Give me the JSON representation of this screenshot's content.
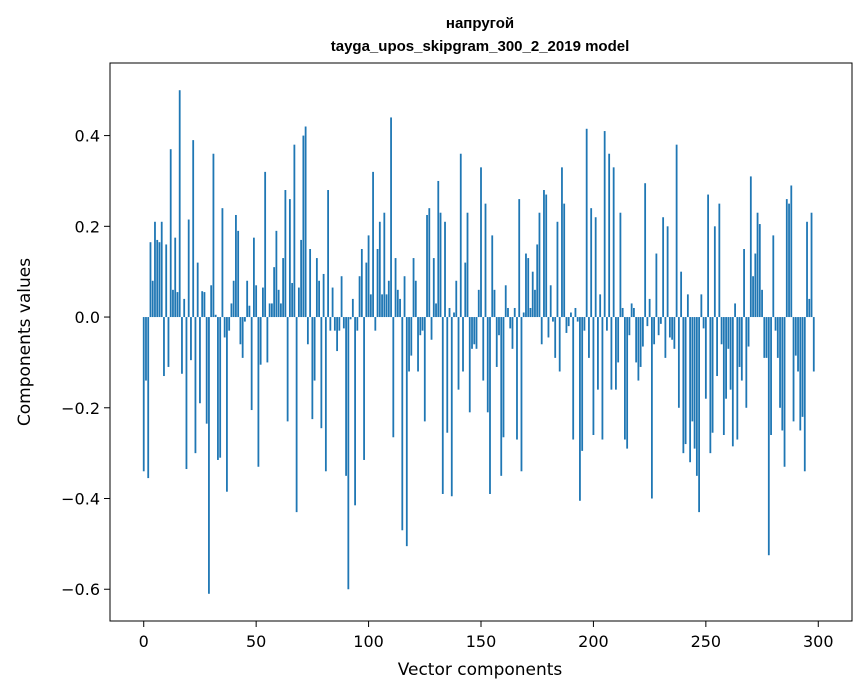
{
  "chart_data": {
    "type": "bar",
    "title_line1": "напругой",
    "title_line2": "tayga_upos_skipgram_300_2_2019 model",
    "xlabel": "Vector components",
    "ylabel": "Components values",
    "xlim": [
      -15,
      315
    ],
    "ylim": [
      -0.67,
      0.56
    ],
    "xticks": [
      0,
      50,
      100,
      150,
      200,
      250,
      300
    ],
    "xtick_labels": [
      "0",
      "50",
      "100",
      "150",
      "200",
      "250",
      "300"
    ],
    "yticks": [
      -0.6,
      -0.4,
      -0.2,
      0.0,
      0.2,
      0.4
    ],
    "ytick_labels": [
      "−0.6",
      "−0.4",
      "−0.2",
      "0.0",
      "0.2",
      "0.4"
    ],
    "grid": false,
    "bar_color": "#1f77b4",
    "values": [
      -0.34,
      -0.14,
      -0.355,
      0.165,
      0.08,
      0.21,
      0.17,
      0.165,
      0.21,
      -0.13,
      0.16,
      -0.11,
      0.37,
      0.06,
      0.175,
      0.055,
      0.5,
      -0.125,
      0.04,
      -0.335,
      0.215,
      -0.095,
      0.39,
      -0.3,
      0.12,
      -0.19,
      0.057,
      0.055,
      -0.235,
      -0.61,
      0.07,
      0.36,
      0.005,
      -0.315,
      -0.31,
      0.24,
      -0.045,
      -0.385,
      -0.03,
      0.03,
      0.08,
      0.225,
      0.19,
      -0.06,
      -0.09,
      -0.01,
      0.08,
      0.025,
      -0.205,
      0.175,
      0.07,
      -0.33,
      -0.105,
      0.065,
      0.32,
      -0.1,
      0.03,
      0.03,
      0.11,
      0.19,
      0.06,
      0.03,
      0.13,
      0.28,
      -0.23,
      0.26,
      0.075,
      0.38,
      -0.43,
      0.065,
      0.17,
      0.4,
      0.42,
      -0.06,
      0.15,
      -0.225,
      -0.14,
      0.13,
      0.08,
      -0.245,
      0.095,
      -0.34,
      0.28,
      -0.03,
      0.065,
      -0.03,
      -0.075,
      -0.03,
      0.09,
      -0.025,
      -0.35,
      -0.6,
      -0.005,
      0.04,
      -0.415,
      -0.03,
      0.09,
      0.15,
      -0.315,
      0.12,
      0.18,
      0.05,
      0.32,
      -0.03,
      0.15,
      0.21,
      0.05,
      0.23,
      0.05,
      0.08,
      0.44,
      -0.265,
      0.13,
      0.06,
      0.04,
      -0.47,
      0.09,
      -0.505,
      -0.12,
      -0.085,
      0.13,
      0.08,
      -0.12,
      -0.04,
      -0.03,
      -0.23,
      0.225,
      0.24,
      -0.05,
      0.13,
      0.03,
      0.3,
      0.23,
      -0.39,
      0.21,
      -0.255,
      0.02,
      -0.395,
      0.01,
      0.08,
      -0.16,
      0.36,
      -0.12,
      0.12,
      0.23,
      -0.21,
      -0.07,
      -0.06,
      -0.07,
      0.06,
      0.33,
      -0.14,
      0.25,
      -0.21,
      -0.39,
      0.18,
      0.06,
      -0.11,
      -0.04,
      -0.35,
      -0.265,
      0.07,
      0.02,
      -0.025,
      -0.07,
      0.02,
      -0.27,
      0.26,
      -0.34,
      0.01,
      0.14,
      0.13,
      0.02,
      0.1,
      0.06,
      0.16,
      0.23,
      -0.06,
      0.28,
      0.27,
      -0.045,
      0.07,
      -0.01,
      -0.09,
      0.21,
      -0.12,
      0.33,
      0.25,
      -0.035,
      -0.02,
      0.01,
      -0.27,
      0.02,
      -0.01,
      -0.405,
      -0.295,
      -0.03,
      0.415,
      -0.09,
      0.24,
      -0.26,
      0.22,
      -0.16,
      0.05,
      -0.27,
      0.41,
      -0.03,
      0.36,
      -0.16,
      0.33,
      -0.16,
      -0.1,
      0.23,
      0.02,
      -0.27,
      -0.29,
      -0.04,
      0.03,
      0.02,
      -0.1,
      -0.14,
      -0.11,
      -0.065,
      0.295,
      -0.02,
      0.04,
      -0.4,
      -0.06,
      0.14,
      -0.04,
      -0.015,
      0.22,
      -0.09,
      0.2,
      -0.045,
      -0.05,
      -0.07,
      0.38,
      -0.2,
      0.1,
      -0.3,
      -0.28,
      0.05,
      -0.32,
      -0.23,
      -0.29,
      -0.35,
      -0.43,
      0.05,
      -0.025,
      -0.18,
      0.27,
      -0.3,
      -0.255,
      0.2,
      -0.13,
      0.25,
      -0.06,
      -0.26,
      -0.18,
      -0.07,
      -0.16,
      -0.285,
      0.03,
      -0.27,
      -0.11,
      -0.14,
      0.15,
      -0.2,
      -0.065,
      0.31,
      0.09,
      0.14,
      0.23,
      0.205,
      0.06,
      -0.09,
      -0.09,
      -0.525,
      -0.26,
      0.18,
      -0.03,
      -0.09,
      -0.2,
      -0.25,
      -0.33,
      0.26,
      0.25,
      0.29,
      -0.23,
      -0.085,
      -0.12,
      -0.25,
      -0.22,
      -0.34,
      0.21,
      0.04,
      0.23,
      -0.12
    ]
  }
}
